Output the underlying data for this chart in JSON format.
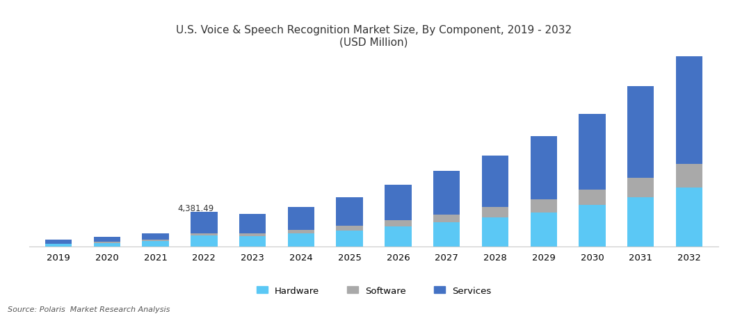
{
  "title_line1": "U.S. Voice & Speech Recognition Market Size, By Component, 2019 - 2032",
  "title_line2": "(USD Million)",
  "years": [
    "2019",
    "2020",
    "2021",
    "2022",
    "2023",
    "2024",
    "2025",
    "2026",
    "2027",
    "2028",
    "2029",
    "2030",
    "2031",
    "2032"
  ],
  "hardware": [
    280,
    450,
    650,
    1350,
    1300,
    1600,
    2000,
    2500,
    3000,
    3700,
    4300,
    5200,
    6200,
    7400
  ],
  "software": [
    80,
    130,
    200,
    320,
    380,
    480,
    600,
    800,
    1000,
    1300,
    1600,
    2000,
    2500,
    3000
  ],
  "services": [
    500,
    620,
    800,
    2710,
    2400,
    2900,
    3600,
    4500,
    5500,
    6500,
    8000,
    9500,
    11500,
    14000
  ],
  "annotation_year_idx": 3,
  "annotation_text": "4,381.49",
  "color_hardware": "#5BC8F5",
  "color_software": "#A9A9A9",
  "color_services": "#4472C4",
  "source_text": "Source: Polaris  Market Research Analysis",
  "ylim_max": 24000,
  "bar_width": 0.55
}
